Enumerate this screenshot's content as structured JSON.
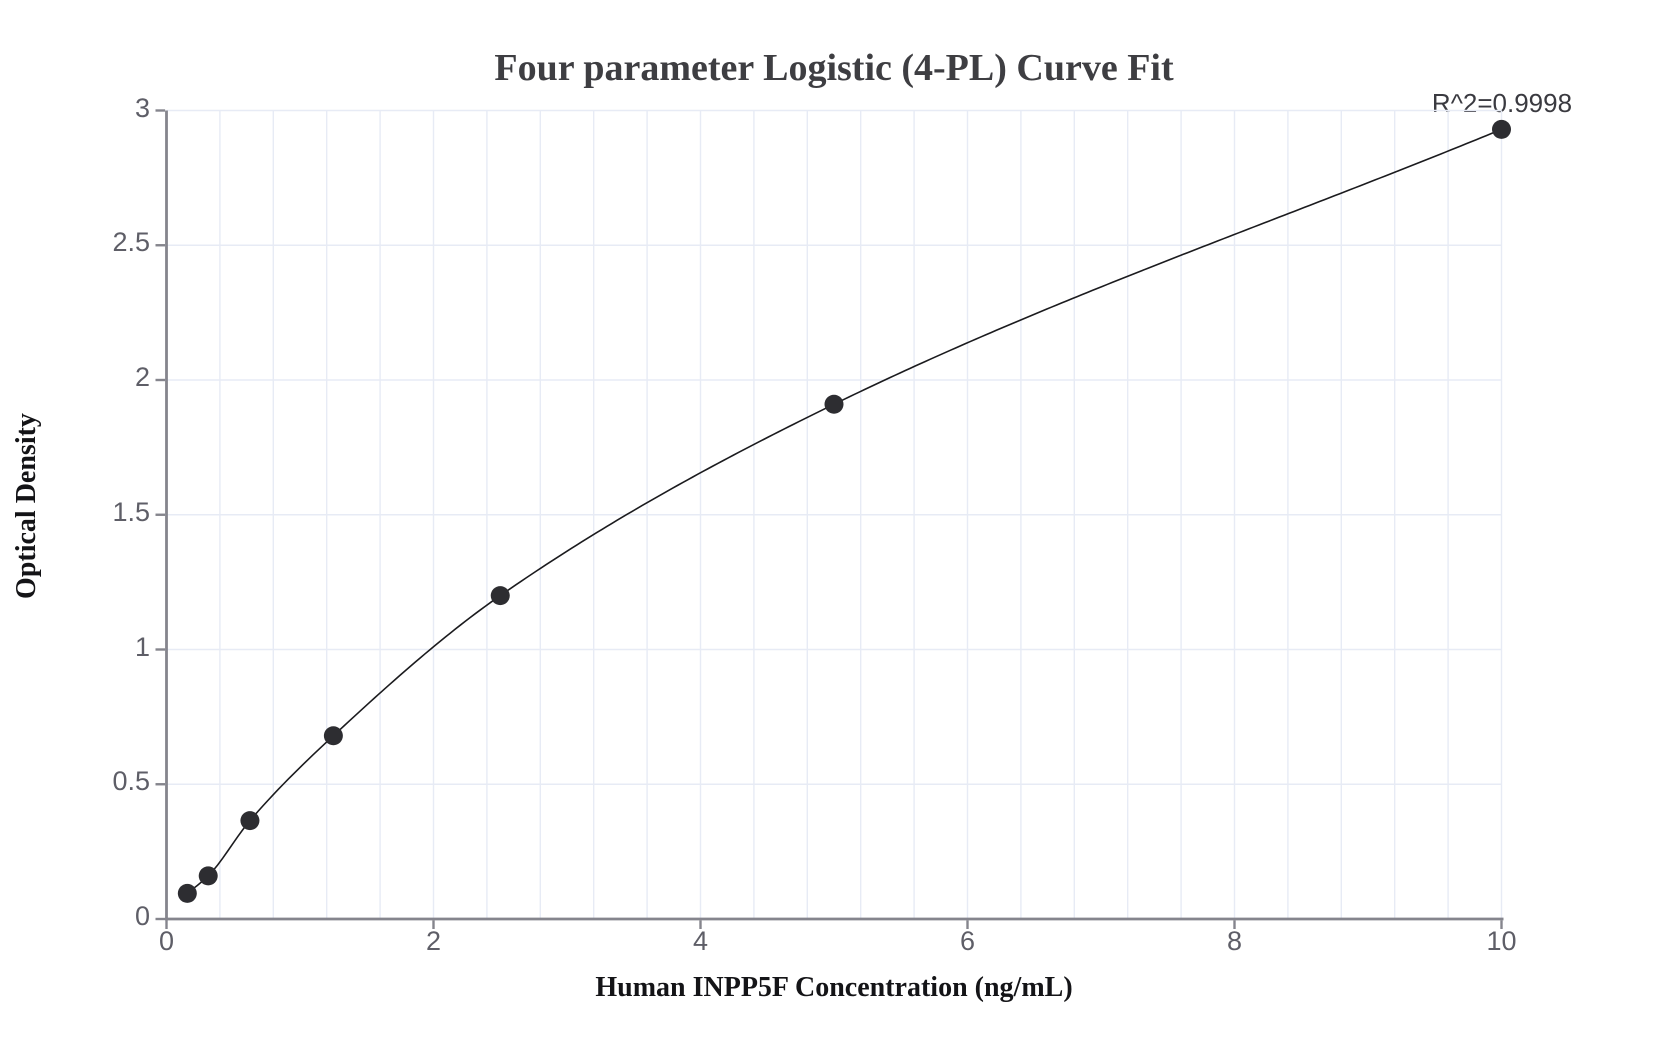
{
  "chart_data": {
    "type": "scatter",
    "title": "Four parameter Logistic (4-PL) Curve Fit",
    "xlabel": "Human INPP5F Concentration (ng/mL)",
    "ylabel": "Optical Density",
    "annotation": "R^2=0.9998",
    "r_squared": 0.9998,
    "fit": "4PL curve through points",
    "points": [
      {
        "x": 0.156,
        "y": 0.095
      },
      {
        "x": 0.3125,
        "y": 0.16
      },
      {
        "x": 0.625,
        "y": 0.365
      },
      {
        "x": 1.25,
        "y": 0.68
      },
      {
        "x": 2.5,
        "y": 1.2
      },
      {
        "x": 5,
        "y": 1.91
      },
      {
        "x": 10,
        "y": 2.93
      }
    ],
    "xticks": [
      0,
      2,
      4,
      6,
      8,
      10
    ],
    "yticks": [
      0,
      0.5,
      1,
      1.5,
      2,
      2.5,
      3
    ],
    "xlim": [
      0,
      10
    ],
    "ylim": [
      0,
      3
    ],
    "x_minor_grid_step": 0.4,
    "grid": true,
    "legend": false,
    "colors": {
      "background": "#ffffff",
      "point": "#2d2d31",
      "curve": "#1b1b1e",
      "grid": "#e7ebf5",
      "axis": "#85858d",
      "tick_label": "#5e5e67",
      "title": "#3e3e42",
      "axis_title": "#141417",
      "annotation": "#3a3a40"
    }
  }
}
